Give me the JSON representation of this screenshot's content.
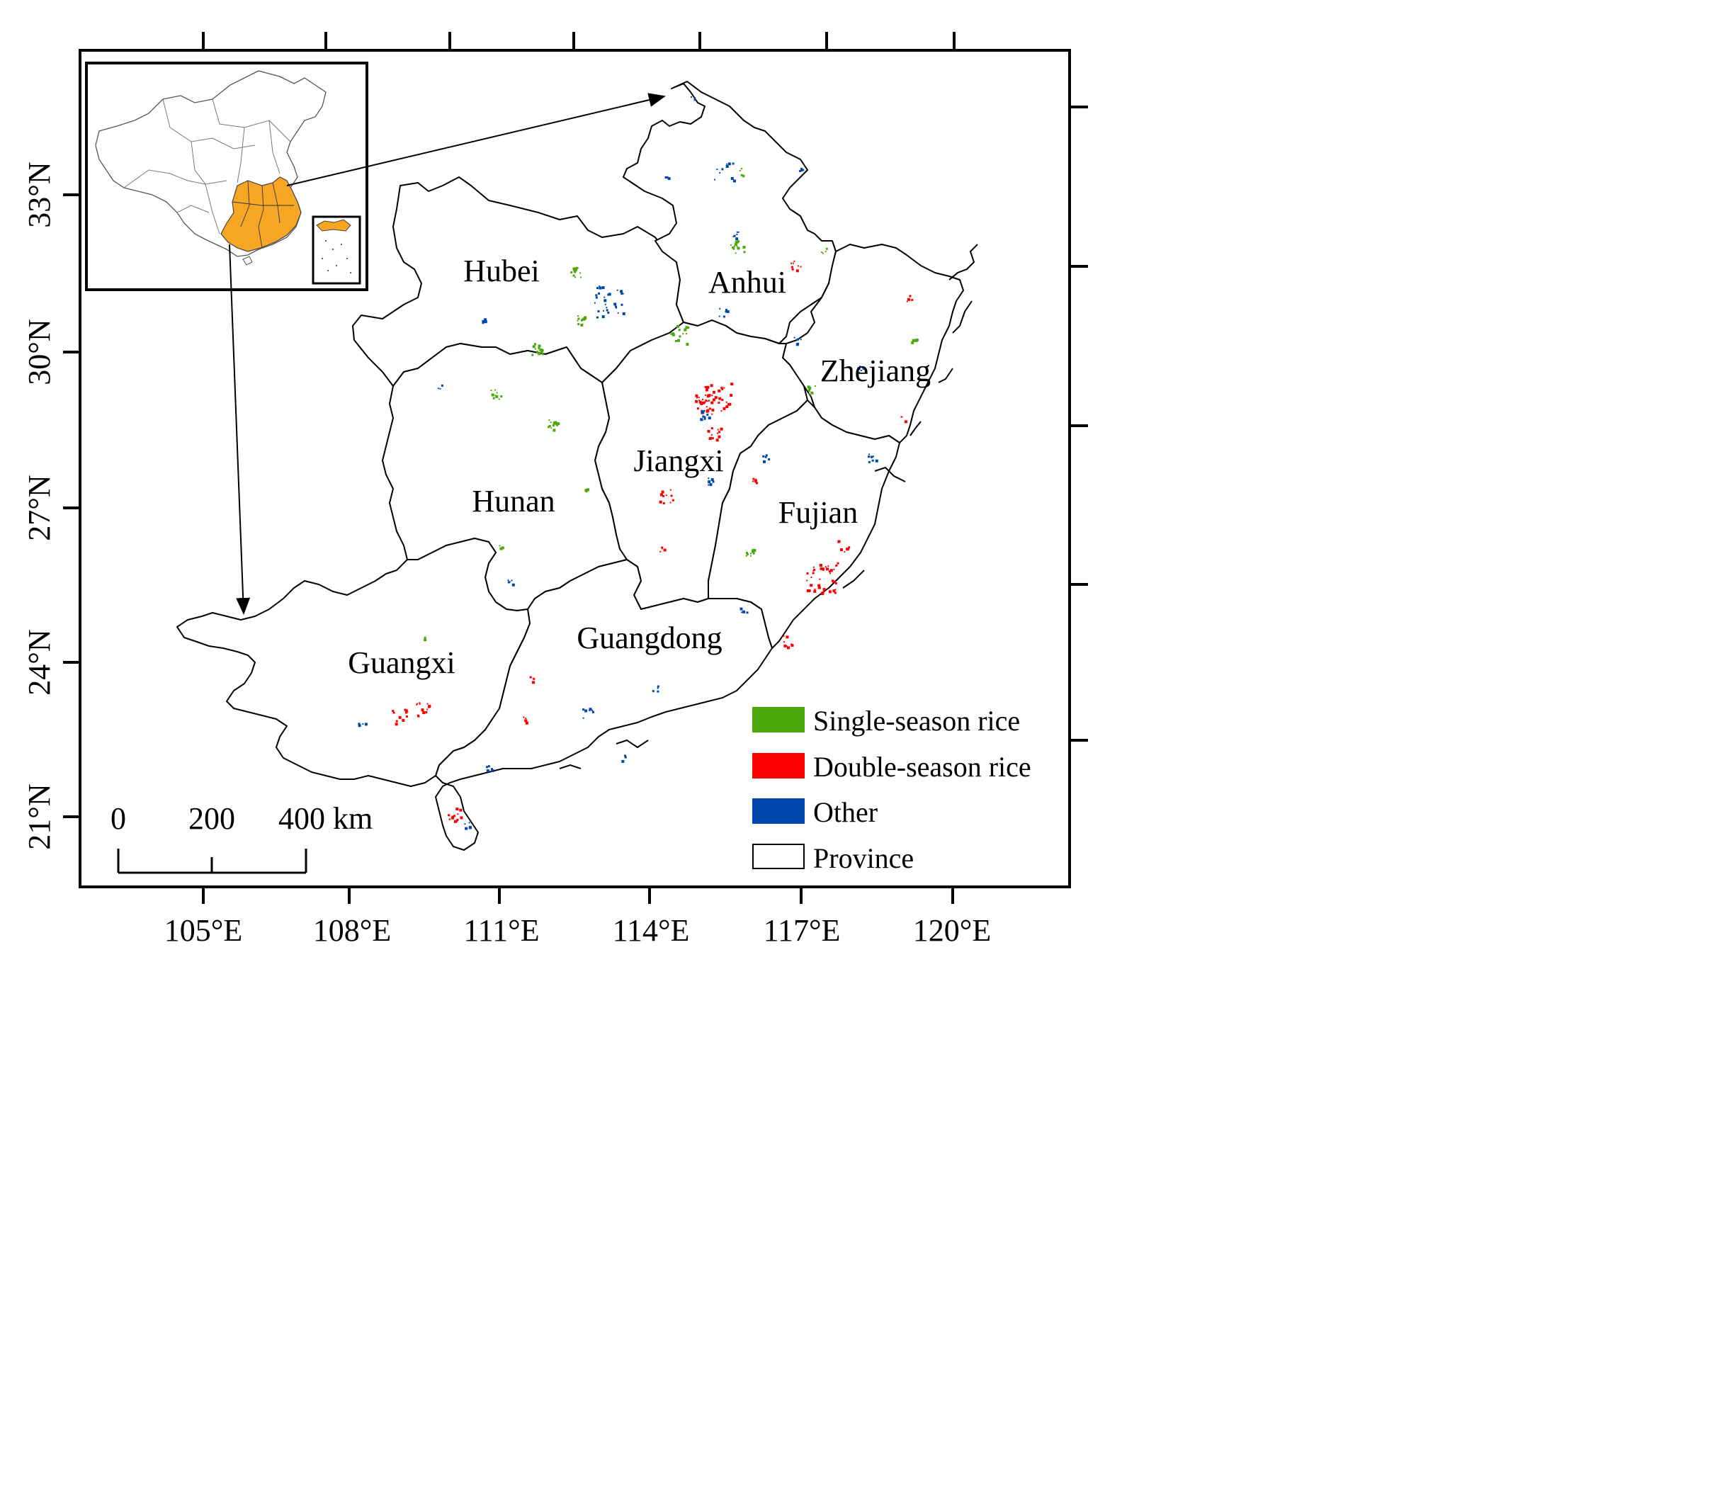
{
  "axes": {
    "lon_labels": [
      "105°E",
      "108°E",
      "111°E",
      "114°E",
      "117°E",
      "120°E"
    ],
    "lat_labels": [
      "33°N",
      "30°N",
      "27°N",
      "24°N",
      "21°N"
    ]
  },
  "provinces": [
    "Hubei",
    "Anhui",
    "Zhejiang",
    "Jiangxi",
    "Hunan",
    "Fujian",
    "Guangxi",
    "Guangdong"
  ],
  "scale_bar": {
    "ticks": [
      "0",
      "200",
      "400 km"
    ]
  },
  "legend": {
    "items": [
      {
        "label": "Single-season rice",
        "color": "#4ca80a"
      },
      {
        "label": "Double-season rice",
        "color": "#ff0000"
      },
      {
        "label": "Other",
        "color": "#0047ab"
      },
      {
        "label": "Province",
        "color": "#ffffff"
      }
    ]
  },
  "colors": {
    "highlight": "#f6a623",
    "single": "#4ca80a",
    "double": "#ff0000",
    "other": "#0047ab"
  }
}
